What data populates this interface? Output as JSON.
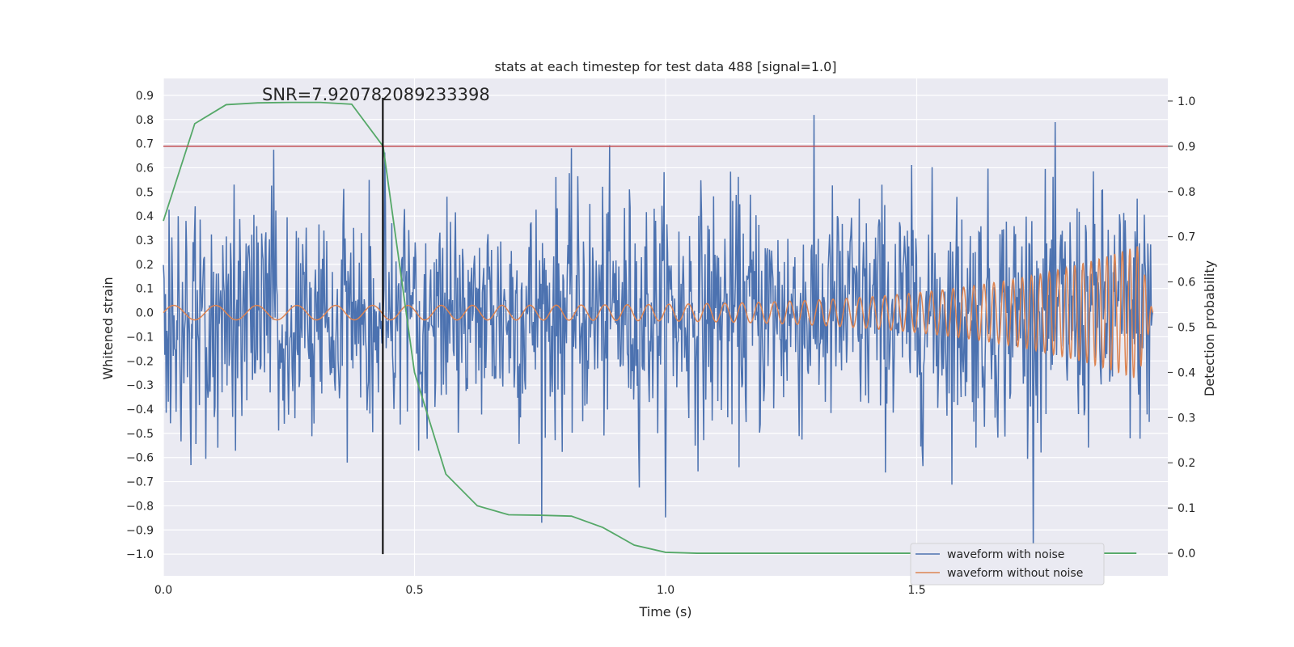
{
  "chart_data": {
    "type": "line",
    "title": "stats at each timestep for test data 488 [signal=1.0]",
    "annotation": "SNR=7.920782089233398",
    "xlabel": "Time (s)",
    "ylabel": "Whitened strain",
    "y2label": "Detection probability",
    "xlim": [
      0.0,
      2.0
    ],
    "ylim": [
      -1.09,
      0.97
    ],
    "y2lim": [
      -0.05,
      1.05
    ],
    "x_ticks": [
      "0.0",
      "0.5",
      "1.0",
      "1.5"
    ],
    "x_tick_values": [
      0.0,
      0.5,
      1.0,
      1.5
    ],
    "y_ticks": [
      "0.9",
      "0.8",
      "0.7",
      "0.6",
      "0.5",
      "0.4",
      "0.3",
      "0.2",
      "0.1",
      "0.0",
      "−0.1",
      "−0.2",
      "−0.3",
      "−0.4",
      "−0.5",
      "−0.6",
      "−0.7",
      "−0.8",
      "−0.9",
      "−1.0"
    ],
    "y_tick_values": [
      0.9,
      0.8,
      0.7,
      0.6,
      0.5,
      0.4,
      0.3,
      0.2,
      0.1,
      0.0,
      -0.1,
      -0.2,
      -0.3,
      -0.4,
      -0.5,
      -0.6,
      -0.7,
      -0.8,
      -0.9,
      -1.0
    ],
    "y2_ticks": [
      "1.0",
      "0.9",
      "0.8",
      "0.7",
      "0.6",
      "0.5",
      "0.4",
      "0.3",
      "0.2",
      "0.1",
      "0.0"
    ],
    "y2_tick_values": [
      1.0,
      0.9,
      0.8,
      0.7,
      0.6,
      0.5,
      0.4,
      0.3,
      0.2,
      0.1,
      0.0
    ],
    "threshold_y2": 0.9,
    "marker_x": 0.437,
    "marker_y_range": [
      -1.0,
      0.89
    ],
    "series": [
      {
        "name": "waveform with noise",
        "color": "#4c72b0",
        "kind": "noise",
        "x_range": [
          0.0,
          1.97
        ],
        "n_points": 1400,
        "std": 0.25,
        "min": -1.0,
        "max": 0.88
      },
      {
        "name": "waveform without noise",
        "color": "#dd8452",
        "kind": "chirp",
        "x_range": [
          0.0,
          1.97
        ],
        "start_freq_hz": 12,
        "end_freq_hz": 70,
        "start_amplitude": 0.03,
        "end_amplitude": 0.3
      },
      {
        "name": "detection probability",
        "color": "#55a868",
        "axis": "right",
        "x": [
          0.0,
          0.0625,
          0.125,
          0.1875,
          0.25,
          0.3125,
          0.375,
          0.4375,
          0.5,
          0.5625,
          0.625,
          0.6875,
          0.75,
          0.8125,
          0.875,
          0.9375,
          1.0,
          1.0625,
          1.5,
          1.9375
        ],
        "values": [
          0.735,
          0.95,
          0.992,
          0.996,
          0.997,
          0.997,
          0.993,
          0.9,
          0.4,
          0.175,
          0.105,
          0.085,
          0.084,
          0.082,
          0.057,
          0.018,
          0.002,
          0.0,
          0.0,
          0.0
        ]
      },
      {
        "name": "threshold",
        "color": "#c44e52",
        "axis": "right"
      }
    ],
    "legend": {
      "placement": "bottom-right",
      "entries": [
        "waveform with noise",
        "waveform without noise"
      ]
    }
  }
}
